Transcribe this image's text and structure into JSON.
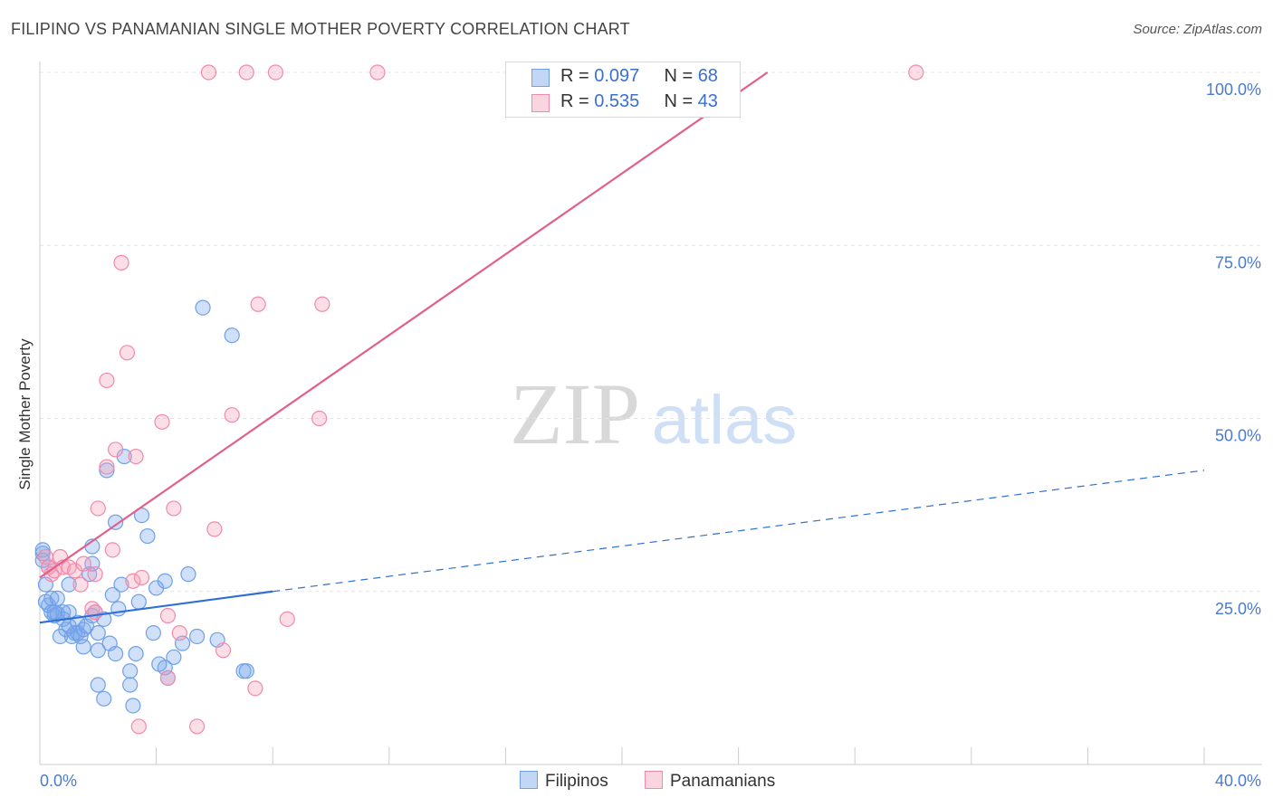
{
  "title": "FILIPINO VS PANAMANIAN SINGLE MOTHER POVERTY CORRELATION CHART",
  "source": "Source: ZipAtlas.com",
  "chart_data": {
    "type": "scatter",
    "xlabel": "",
    "ylabel": "Single Mother Poverty",
    "xlim": [
      0,
      40
    ],
    "ylim": [
      0,
      100
    ],
    "x_tick_labels": [
      "0.0%",
      "40.0%"
    ],
    "y_tick_labels": [
      "25.0%",
      "50.0%",
      "75.0%",
      "100.0%"
    ],
    "y_ticks": [
      25,
      50,
      75,
      100
    ],
    "watermark": {
      "zip": "ZIP",
      "atlas": "atlas"
    },
    "legend": {
      "rows": [
        {
          "r_label": "R =",
          "r_value": "0.097",
          "n_label": "N =",
          "n_value": "68"
        },
        {
          "r_label": "R =",
          "r_value": "0.535",
          "n_label": "N =",
          "n_value": "43"
        }
      ]
    },
    "series": [
      {
        "name": "Filipinos",
        "color": "#6fa0e8",
        "fill": "rgba(120,165,235,0.35)",
        "trend_color": "#2f6fd6",
        "trend": {
          "x0": 0,
          "y0": 20.5,
          "x1": 8,
          "y1": 25.0,
          "x_dash_end": 40,
          "y_dash_end": 42.5
        },
        "points": [
          [
            0.1,
            30.5
          ],
          [
            0.1,
            29.5
          ],
          [
            0.2,
            26.0
          ],
          [
            0.2,
            23.5
          ],
          [
            0.3,
            23.0
          ],
          [
            0.4,
            24.0
          ],
          [
            0.4,
            22.0
          ],
          [
            0.5,
            21.5
          ],
          [
            0.6,
            24.0
          ],
          [
            0.6,
            21.8
          ],
          [
            0.7,
            18.5
          ],
          [
            0.8,
            21.0
          ],
          [
            0.8,
            22.0
          ],
          [
            0.9,
            19.5
          ],
          [
            1.0,
            22.0
          ],
          [
            1.0,
            26.0
          ],
          [
            1.1,
            18.5
          ],
          [
            1.2,
            19.0
          ],
          [
            1.3,
            19.0
          ],
          [
            1.3,
            20.5
          ],
          [
            1.4,
            18.5
          ],
          [
            1.5,
            19.5
          ],
          [
            1.5,
            17.0
          ],
          [
            1.6,
            20.0
          ],
          [
            1.7,
            27.5
          ],
          [
            1.8,
            29.0
          ],
          [
            1.8,
            31.5
          ],
          [
            1.8,
            21.5
          ],
          [
            1.9,
            22.0
          ],
          [
            2.0,
            16.5
          ],
          [
            2.0,
            11.5
          ],
          [
            2.2,
            9.5
          ],
          [
            2.2,
            21.0
          ],
          [
            2.3,
            42.5
          ],
          [
            2.4,
            17.5
          ],
          [
            2.5,
            24.5
          ],
          [
            2.6,
            16.0
          ],
          [
            2.7,
            22.5
          ],
          [
            2.6,
            35.0
          ],
          [
            2.8,
            26.0
          ],
          [
            2.9,
            44.5
          ],
          [
            3.1,
            13.5
          ],
          [
            3.1,
            11.5
          ],
          [
            3.2,
            8.5
          ],
          [
            3.3,
            16.0
          ],
          [
            3.4,
            23.5
          ],
          [
            3.5,
            36.0
          ],
          [
            3.7,
            33.0
          ],
          [
            3.9,
            19.0
          ],
          [
            4.0,
            25.5
          ],
          [
            4.1,
            14.5
          ],
          [
            4.3,
            14.0
          ],
          [
            4.3,
            26.5
          ],
          [
            4.4,
            12.5
          ],
          [
            4.6,
            15.5
          ],
          [
            4.9,
            17.5
          ],
          [
            5.1,
            27.5
          ],
          [
            5.4,
            18.5
          ],
          [
            5.6,
            66.0
          ],
          [
            6.1,
            18.0
          ],
          [
            6.6,
            62.0
          ],
          [
            7.0,
            13.5
          ],
          [
            7.1,
            13.5
          ],
          [
            0.1,
            31.0
          ],
          [
            0.3,
            28.5
          ],
          [
            0.5,
            22.0
          ],
          [
            1.0,
            20.0
          ],
          [
            2.0,
            19.0
          ]
        ]
      },
      {
        "name": "Panamanians",
        "color": "#f08aaa",
        "fill": "rgba(245,160,185,0.35)",
        "trend_color": "#e0608a",
        "trend": {
          "x0": 0,
          "y0": 27.0,
          "x1": 25,
          "y1": 100.0
        },
        "points": [
          [
            0.2,
            30.0
          ],
          [
            0.3,
            28.5
          ],
          [
            0.4,
            27.5
          ],
          [
            0.5,
            28.0
          ],
          [
            0.7,
            30.0
          ],
          [
            0.8,
            28.5
          ],
          [
            1.0,
            28.5
          ],
          [
            1.2,
            28.0
          ],
          [
            1.4,
            26.0
          ],
          [
            1.5,
            29.0
          ],
          [
            1.8,
            22.5
          ],
          [
            1.9,
            22.0
          ],
          [
            1.9,
            27.5
          ],
          [
            2.0,
            37.0
          ],
          [
            2.3,
            55.5
          ],
          [
            2.3,
            43.0
          ],
          [
            2.5,
            31.0
          ],
          [
            2.6,
            45.5
          ],
          [
            2.8,
            72.5
          ],
          [
            3.0,
            59.5
          ],
          [
            3.2,
            26.5
          ],
          [
            3.3,
            44.5
          ],
          [
            3.4,
            5.5
          ],
          [
            3.5,
            27.0
          ],
          [
            4.2,
            49.5
          ],
          [
            4.4,
            12.5
          ],
          [
            4.4,
            21.5
          ],
          [
            4.6,
            37.0
          ],
          [
            4.8,
            19.0
          ],
          [
            5.4,
            5.5
          ],
          [
            5.8,
            100.0
          ],
          [
            6.0,
            34.0
          ],
          [
            6.3,
            16.5
          ],
          [
            6.6,
            50.5
          ],
          [
            7.1,
            100.0
          ],
          [
            7.4,
            11.0
          ],
          [
            7.5,
            66.5
          ],
          [
            8.1,
            100.0
          ],
          [
            8.5,
            21.0
          ],
          [
            9.6,
            50.0
          ],
          [
            9.7,
            66.5
          ],
          [
            11.6,
            100.0
          ],
          [
            30.1,
            100.0
          ]
        ]
      }
    ]
  }
}
